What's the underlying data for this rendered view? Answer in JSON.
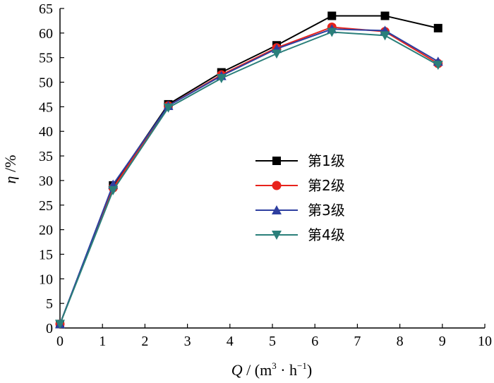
{
  "chart_data": {
    "type": "line",
    "x": [
      0,
      1.25,
      2.55,
      3.8,
      5.1,
      6.4,
      7.65,
      8.9
    ],
    "series": [
      {
        "name": "第1级",
        "values": [
          0.8,
          29.0,
          45.5,
          52.0,
          57.5,
          63.5,
          63.5,
          61.0
        ],
        "color": "#000000",
        "marker": "square"
      },
      {
        "name": "第2级",
        "values": [
          0.8,
          28.5,
          45.2,
          51.5,
          57.0,
          61.2,
          60.3,
          53.8
        ],
        "color": "#e8231c",
        "marker": "circle"
      },
      {
        "name": "第3级",
        "values": [
          0.8,
          29.2,
          45.2,
          51.3,
          56.8,
          60.8,
          60.5,
          54.2
        ],
        "color": "#2e3fa0",
        "marker": "triangle-up"
      },
      {
        "name": "第4级",
        "values": [
          0.8,
          28.0,
          44.8,
          50.8,
          55.8,
          60.2,
          59.5,
          53.5
        ],
        "color": "#2a7f7a",
        "marker": "triangle-down"
      }
    ],
    "xlabel": {
      "var": "Q",
      "sep": " / (m",
      "sup1": "3",
      "mid": " · h",
      "sup2": "−1",
      "end": ")"
    },
    "ylabel": {
      "var": "η",
      "unit": " /%"
    },
    "xlim": [
      0,
      10
    ],
    "ylim": [
      0,
      65
    ],
    "xticks": [
      0,
      1,
      2,
      3,
      4,
      5,
      6,
      7,
      8,
      9,
      10
    ],
    "yticks": [
      0,
      5,
      10,
      15,
      20,
      25,
      30,
      35,
      40,
      45,
      50,
      55,
      60,
      65
    ],
    "grid": false,
    "legend_position": "center-right"
  }
}
